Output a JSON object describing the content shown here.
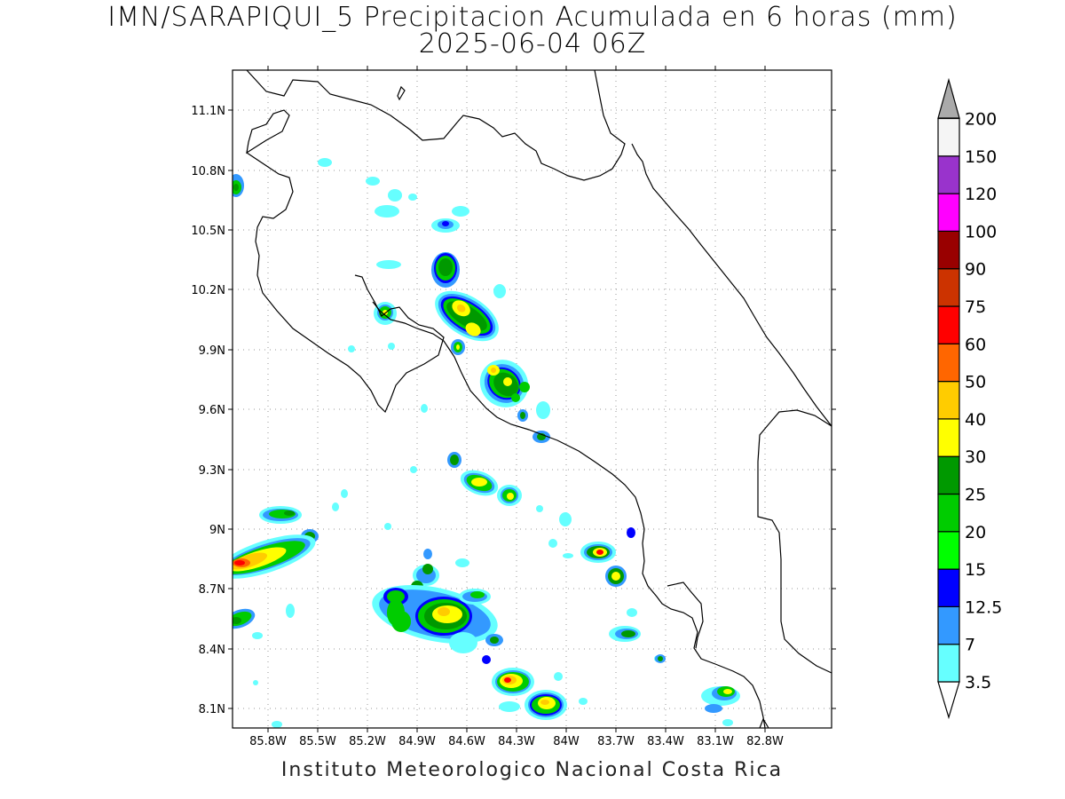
{
  "title_line1": "IMN/SARAPIQUI_5 Precipitacion Acumulada en 6 horas (mm)",
  "title_line2": "2025-06-04 06Z",
  "footer": "Instituto Meteorologico Nacional Costa Rica",
  "axes": {
    "lat_labels": [
      "11.1N",
      "10.8N",
      "10.5N",
      "10.2N",
      "9.9N",
      "9.6N",
      "9.3N",
      "9N",
      "8.7N",
      "8.4N",
      "8.1N"
    ],
    "lon_labels": [
      "85.8W",
      "85.5W",
      "85.2W",
      "84.9W",
      "84.6W",
      "84.3W",
      "84W",
      "83.7W",
      "83.4W",
      "83.1W",
      "82.8W"
    ]
  },
  "colorbar": {
    "levels": [
      "3.5",
      "7",
      "12.5",
      "15",
      "20",
      "25",
      "30",
      "40",
      "50",
      "60",
      "75",
      "90",
      "100",
      "120",
      "150",
      "200"
    ],
    "colors": [
      "#66ffff",
      "#3399ff",
      "#0000ff",
      "#00ff00",
      "#00cc00",
      "#009900",
      "#ffff00",
      "#ffcc00",
      "#ff6600",
      "#ff0000",
      "#cc3300",
      "#990000",
      "#ff00ff",
      "#9933cc",
      "#f5f5f5",
      "#aaaaaa"
    ]
  }
}
